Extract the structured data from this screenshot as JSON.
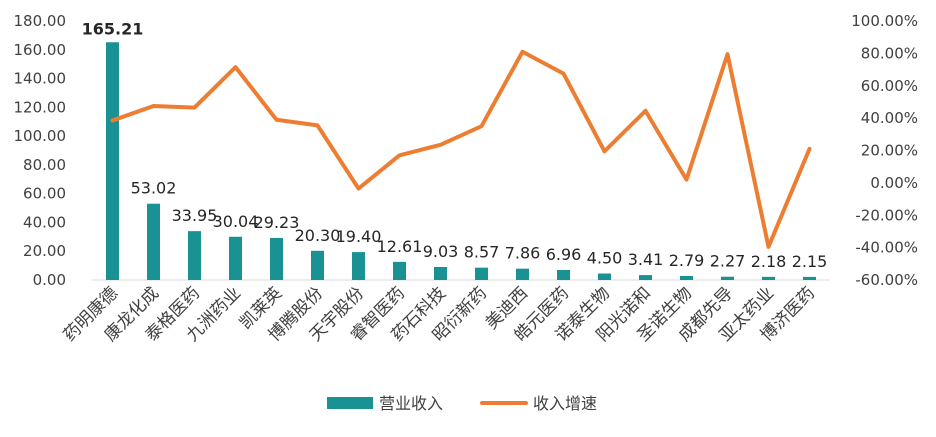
{
  "chart_data": {
    "type": "bar+line",
    "categories": [
      "药明康德",
      "康龙化成",
      "泰格医药",
      "九洲药业",
      "凯莱英",
      "博腾股份",
      "天宇股份",
      "睿智医药",
      "药石科技",
      "昭衍新药",
      "美迪西",
      "皓元医药",
      "诺泰生物",
      "阳光诺和",
      "圣诺生物",
      "成都先导",
      "亚太药业",
      "博济医药"
    ],
    "series": [
      {
        "name": "营业收入",
        "type": "bar",
        "axis": "left",
        "color": "#1a9192",
        "values": [
          165.21,
          53.02,
          33.95,
          30.04,
          29.23,
          20.3,
          19.4,
          12.61,
          9.03,
          8.57,
          7.86,
          6.96,
          4.5,
          3.41,
          2.79,
          2.27,
          2.18,
          2.15
        ],
        "labels": [
          "165.21",
          "53.02",
          "33.95",
          "30.04",
          "29.23",
          "20.30",
          "19.40",
          "12.61",
          "9.03",
          "8.57",
          "7.86",
          "6.96",
          "4.50",
          "3.41",
          "2.79",
          "2.27",
          "2.18",
          "2.15"
        ]
      },
      {
        "name": "收入增速",
        "type": "line",
        "axis": "right",
        "color": "#ed7d31",
        "values": [
          38.5,
          47.5,
          46.5,
          71.5,
          39.0,
          35.5,
          -3.5,
          17.0,
          23.5,
          35.0,
          81.0,
          67.5,
          19.5,
          44.5,
          2.0,
          79.5,
          -39.5,
          21.0
        ]
      }
    ],
    "y_left": {
      "min": 0,
      "max": 180,
      "ticks": [
        "0.00",
        "20.00",
        "40.00",
        "60.00",
        "80.00",
        "100.00",
        "120.00",
        "140.00",
        "160.00",
        "180.00"
      ]
    },
    "y_right": {
      "min": -60,
      "max": 100,
      "ticks": [
        "-60.00%",
        "-40.00%",
        "-20.00%",
        "0.00%",
        "20.00%",
        "40.00%",
        "60.00%",
        "80.00%",
        "100.00%"
      ]
    },
    "legend": {
      "position": "bottom",
      "items": [
        "营业收入",
        "收入增速"
      ]
    },
    "grid": false
  }
}
